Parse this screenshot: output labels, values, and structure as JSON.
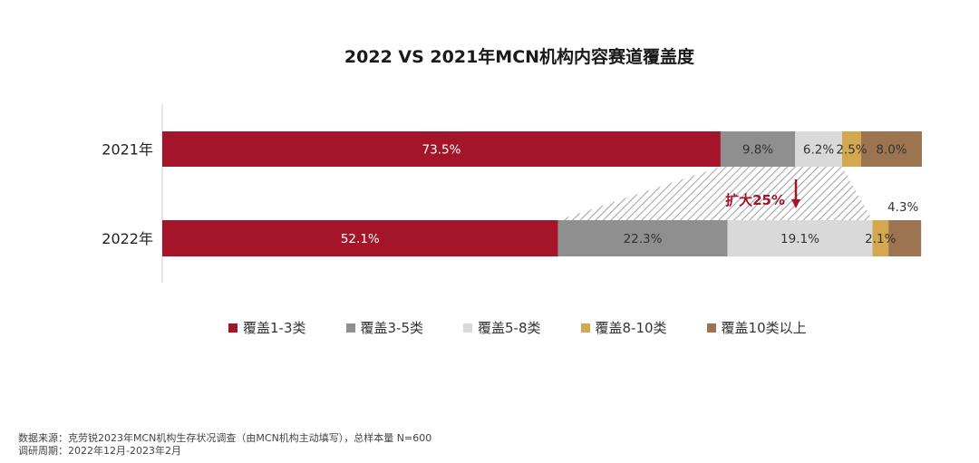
{
  "title": "2022 VS 2021年MCN机构内容赛道覆盖度",
  "colors": {
    "c1": "#a5152a",
    "c2": "#8f8f8f",
    "c3": "#d9d9d9",
    "c4": "#d3a84f",
    "c5": "#9c7550"
  },
  "annotation": {
    "text": "扩大25%",
    "color": "#a5152a"
  },
  "chart_data": {
    "type": "bar",
    "orientation": "horizontal",
    "stacked": true,
    "categories": [
      "2021年",
      "2022年"
    ],
    "series": [
      {
        "name": "覆盖1-3类",
        "values": [
          73.5,
          52.1
        ],
        "labels": [
          "73.5%",
          "52.1%"
        ]
      },
      {
        "name": "覆盖3-5类",
        "values": [
          9.8,
          22.3
        ],
        "labels": [
          "9.8%",
          "22.3%"
        ]
      },
      {
        "name": "覆盖5-8类",
        "values": [
          6.2,
          19.1
        ],
        "labels": [
          "6.2%",
          "19.1%"
        ]
      },
      {
        "name": "覆盖8-10类",
        "values": [
          2.5,
          2.1
        ],
        "labels": [
          "2.5%",
          "2.1%"
        ]
      },
      {
        "name": "覆盖10类以上",
        "values": [
          8.0,
          4.3
        ],
        "labels": [
          "8.0%",
          "4.3%"
        ]
      }
    ],
    "xlim": [
      0,
      100
    ],
    "legend_position": "bottom",
    "grid": false
  },
  "footer": {
    "source": "数据来源：克劳锐2023年MCN机构生存状况调查（由MCN机构主动填写），总样本量 N=600",
    "period": "调研周期：2022年12月-2023年2月"
  }
}
